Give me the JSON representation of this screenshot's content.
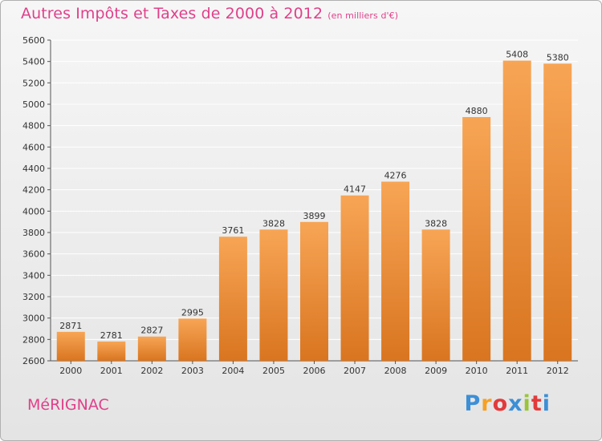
{
  "page": {
    "commune": "MéRIGNAC",
    "brand": {
      "letters": [
        "P",
        "r",
        "o",
        "x",
        "i",
        "t",
        "i"
      ],
      "colors": [
        "#3d8fd6",
        "#f6a025",
        "#e23b3b",
        "#3d8fd6",
        "#9ac43a",
        "#e23b3b",
        "#3d8fd6"
      ]
    }
  },
  "chart_data": {
    "type": "bar",
    "title": "Autres Impôts et Taxes de 2000 à 2012",
    "subtitle": "(en milliers d'€)",
    "xlabel": "",
    "ylabel": "",
    "categories": [
      "2000",
      "2001",
      "2002",
      "2003",
      "2004",
      "2005",
      "2006",
      "2007",
      "2008",
      "2009",
      "2010",
      "2011",
      "2012"
    ],
    "values": [
      2871,
      2781,
      2827,
      2995,
      3761,
      3828,
      3899,
      4147,
      4276,
      3828,
      4880,
      5408,
      5380
    ],
    "ylim": [
      2600,
      5600
    ],
    "yticks": [
      2600,
      2800,
      3000,
      3200,
      3400,
      3600,
      3800,
      4000,
      4200,
      4400,
      4600,
      4800,
      5000,
      5200,
      5400,
      5600
    ],
    "grid": true,
    "colors": {
      "bar_top": "#f7a555",
      "bar_bottom": "#d97520",
      "grid": "#ffffff",
      "axis": "#555555"
    }
  }
}
